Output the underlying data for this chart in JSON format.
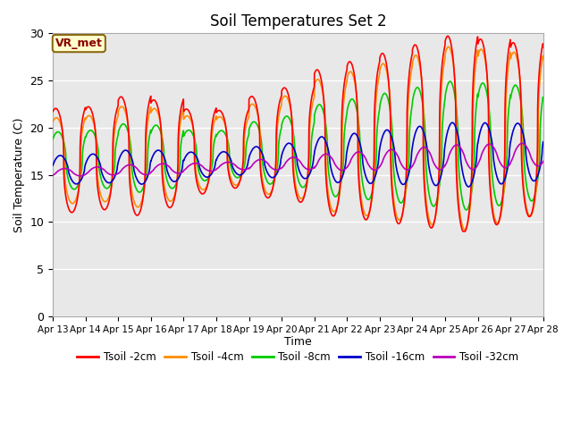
{
  "title": "Soil Temperatures Set 2",
  "xlabel": "Time",
  "ylabel": "Soil Temperature (C)",
  "ylim": [
    0,
    30
  ],
  "xlim": [
    0,
    15
  ],
  "xtick_labels": [
    "Apr 13",
    "Apr 14",
    "Apr 15",
    "Apr 16",
    "Apr 17",
    "Apr 18",
    "Apr 19",
    "Apr 20",
    "Apr 21",
    "Apr 22",
    "Apr 23",
    "Apr 24",
    "Apr 25",
    "Apr 26",
    "Apr 27",
    "Apr 28"
  ],
  "legend_labels": [
    "Tsoil -2cm",
    "Tsoil -4cm",
    "Tsoil -8cm",
    "Tsoil -16cm",
    "Tsoil -32cm"
  ],
  "line_colors": [
    "#ff0000",
    "#ff8c00",
    "#00cc00",
    "#0000cc",
    "#bb00bb"
  ],
  "line_widths": [
    1.2,
    1.2,
    1.2,
    1.2,
    1.2
  ],
  "vr_met_label": "VR_met",
  "plot_bg_color": "#e8e8e8",
  "fig_bg_color": "#ffffff",
  "grid_color": "#ffffff",
  "yticks": [
    0,
    5,
    10,
    15,
    20,
    25,
    30
  ]
}
